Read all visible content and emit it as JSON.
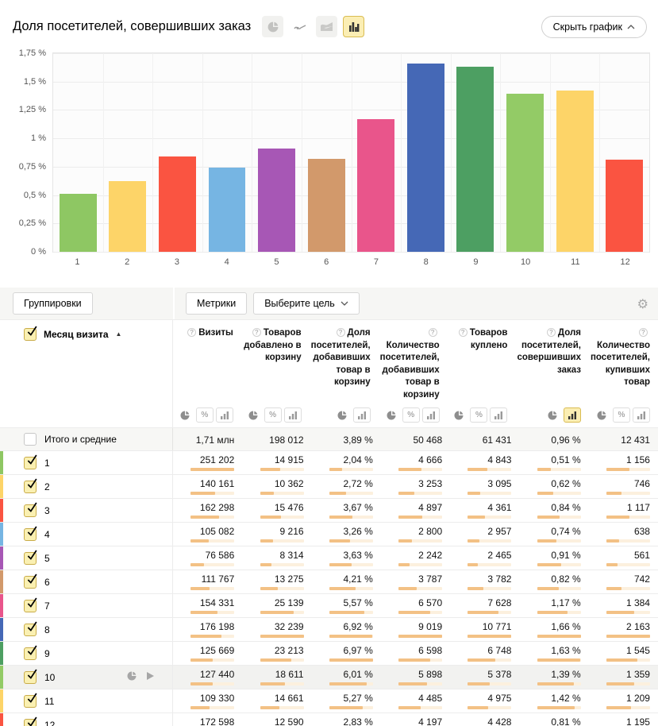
{
  "header": {
    "title": "Доля посетителей, совершивших заказ",
    "hide_chart_label": "Скрыть график",
    "chart_type_icons": [
      {
        "name": "pie-chart-icon",
        "selected": false
      },
      {
        "name": "line-chart-icon",
        "selected": false
      },
      {
        "name": "stacked-area-chart-icon",
        "selected": false
      },
      {
        "name": "bar-chart-icon",
        "selected": true
      }
    ]
  },
  "chart_data": {
    "type": "bar",
    "title": "Доля посетителей, совершивших заказ",
    "categories": [
      "1",
      "2",
      "3",
      "4",
      "5",
      "6",
      "7",
      "8",
      "9",
      "10",
      "11",
      "12"
    ],
    "values": [
      0.51,
      0.62,
      0.84,
      0.74,
      0.91,
      0.82,
      1.17,
      1.66,
      1.63,
      1.39,
      1.42,
      0.81
    ],
    "unit": "%",
    "bar_colors": [
      "#8ec763",
      "#fdd468",
      "#fa5441",
      "#76b5e3",
      "#a757b5",
      "#d2996b",
      "#e9558b",
      "#4568b6",
      "#4d9f62",
      "#93cb66",
      "#fdd468",
      "#fa5441"
    ],
    "y_ticks": [
      "1,75 %",
      "1,5 %",
      "1,25 %",
      "1 %",
      "0,75 %",
      "0,5 %",
      "0,25 %",
      "0 %"
    ],
    "ylim": [
      0,
      1.75
    ],
    "xlabel": "",
    "ylabel": "",
    "grid": true,
    "legend": false
  },
  "toolbar": {
    "groupings_label": "Группировки",
    "metrics_label": "Метрики",
    "select_goal_label": "Выберите цель"
  },
  "table": {
    "row_header": {
      "label": "Месяц визита",
      "sort_icon": "▲"
    },
    "columns": [
      {
        "label": "Визиты",
        "toggles": [
          "pie",
          "percent",
          "bar"
        ],
        "selected_toggle": ""
      },
      {
        "label": "Товаров добавлено в корзину",
        "toggles": [
          "pie",
          "percent",
          "bar"
        ],
        "selected_toggle": ""
      },
      {
        "label": "Доля посетителей, добавивших товар в корзину",
        "toggles": [
          "pie",
          "bar"
        ],
        "selected_toggle": ""
      },
      {
        "label": "Количество посетителей, добавивших товар в корзину",
        "toggles": [
          "pie",
          "percent",
          "bar"
        ],
        "selected_toggle": ""
      },
      {
        "label": "Товаров куплено",
        "toggles": [
          "pie",
          "percent",
          "bar"
        ],
        "selected_toggle": ""
      },
      {
        "label": "Доля посетителей, совершивших заказ",
        "toggles": [
          "pie",
          "bar"
        ],
        "selected_toggle": "bar"
      },
      {
        "label": "Количество посетителей, купивших товар",
        "toggles": [
          "pie",
          "percent",
          "bar"
        ],
        "selected_toggle": ""
      }
    ],
    "totals": {
      "label": "Итого и средние",
      "values": [
        "1,71 млн",
        "198 012",
        "3,89 %",
        "50 468",
        "61 431",
        "0,96 %",
        "12 431"
      ]
    },
    "rows": [
      {
        "label": "1",
        "color": "#8ec763",
        "values": [
          "251 202",
          "14 915",
          "2,04 %",
          "4 666",
          "4 843",
          "0,51 %",
          "1 156"
        ],
        "raw": [
          251202,
          14915,
          2.04,
          4666,
          4843,
          0.51,
          1156
        ],
        "checked": true,
        "hovered": false
      },
      {
        "label": "2",
        "color": "#fdd468",
        "values": [
          "140 161",
          "10 362",
          "2,72 %",
          "3 253",
          "3 095",
          "0,62 %",
          "746"
        ],
        "raw": [
          140161,
          10362,
          2.72,
          3253,
          3095,
          0.62,
          746
        ],
        "checked": true,
        "hovered": false
      },
      {
        "label": "3",
        "color": "#fa5441",
        "values": [
          "162 298",
          "15 476",
          "3,67 %",
          "4 897",
          "4 361",
          "0,84 %",
          "1 117"
        ],
        "raw": [
          162298,
          15476,
          3.67,
          4897,
          4361,
          0.84,
          1117
        ],
        "checked": true,
        "hovered": false
      },
      {
        "label": "4",
        "color": "#76b5e3",
        "values": [
          "105 082",
          "9 216",
          "3,26 %",
          "2 800",
          "2 957",
          "0,74 %",
          "638"
        ],
        "raw": [
          105082,
          9216,
          3.26,
          2800,
          2957,
          0.74,
          638
        ],
        "checked": true,
        "hovered": false
      },
      {
        "label": "5",
        "color": "#a757b5",
        "values": [
          "76 586",
          "8 314",
          "3,63 %",
          "2 242",
          "2 465",
          "0,91 %",
          "561"
        ],
        "raw": [
          76586,
          8314,
          3.63,
          2242,
          2465,
          0.91,
          561
        ],
        "checked": true,
        "hovered": false
      },
      {
        "label": "6",
        "color": "#d2996b",
        "values": [
          "111 767",
          "13 275",
          "4,21 %",
          "3 787",
          "3 782",
          "0,82 %",
          "742"
        ],
        "raw": [
          111767,
          13275,
          4.21,
          3787,
          3782,
          0.82,
          742
        ],
        "checked": true,
        "hovered": false
      },
      {
        "label": "7",
        "color": "#e9558b",
        "values": [
          "154 331",
          "25 139",
          "5,57 %",
          "6 570",
          "7 628",
          "1,17 %",
          "1 384"
        ],
        "raw": [
          154331,
          25139,
          5.57,
          6570,
          7628,
          1.17,
          1384
        ],
        "checked": true,
        "hovered": false
      },
      {
        "label": "8",
        "color": "#4568b6",
        "values": [
          "176 198",
          "32 239",
          "6,92 %",
          "9 019",
          "10 771",
          "1,66 %",
          "2 163"
        ],
        "raw": [
          176198,
          32239,
          6.92,
          9019,
          10771,
          1.66,
          2163
        ],
        "checked": true,
        "hovered": false
      },
      {
        "label": "9",
        "color": "#4d9f62",
        "values": [
          "125 669",
          "23 213",
          "6,97 %",
          "6 598",
          "6 748",
          "1,63 %",
          "1 545"
        ],
        "raw": [
          125669,
          23213,
          6.97,
          6598,
          6748,
          1.63,
          1545
        ],
        "checked": true,
        "hovered": false
      },
      {
        "label": "10",
        "color": "#93cb66",
        "values": [
          "127 440",
          "18 611",
          "6,01 %",
          "5 898",
          "5 378",
          "1,39 %",
          "1 359"
        ],
        "raw": [
          127440,
          18611,
          6.01,
          5898,
          5378,
          1.39,
          1359
        ],
        "checked": true,
        "hovered": true
      },
      {
        "label": "11",
        "color": "#fdd468",
        "values": [
          "109 330",
          "14 661",
          "5,27 %",
          "4 485",
          "4 975",
          "1,42 %",
          "1 209"
        ],
        "raw": [
          109330,
          14661,
          5.27,
          4485,
          4975,
          1.42,
          1209
        ],
        "checked": true,
        "hovered": false
      },
      {
        "label": "12",
        "color": "#fa5441",
        "values": [
          "172 598",
          "12 590",
          "2,83 %",
          "4 197",
          "4 428",
          "0,81 %",
          "1 195"
        ],
        "raw": [
          172598,
          12590,
          2.83,
          4197,
          4428,
          0.81,
          1195
        ],
        "checked": true,
        "hovered": false
      }
    ],
    "hover_row_icons": [
      "pie-chart-icon",
      "drilldown-play-icon"
    ]
  },
  "colors": {
    "minibar_fill": "#f3c185",
    "minibar_track": "#fcf0de",
    "selected_yellow_bg": "#fbeeb4",
    "selected_yellow_border": "#d9bc52",
    "totals_row_bg": "#f7f7f5",
    "hover_row_bg": "#f2f2f0"
  }
}
